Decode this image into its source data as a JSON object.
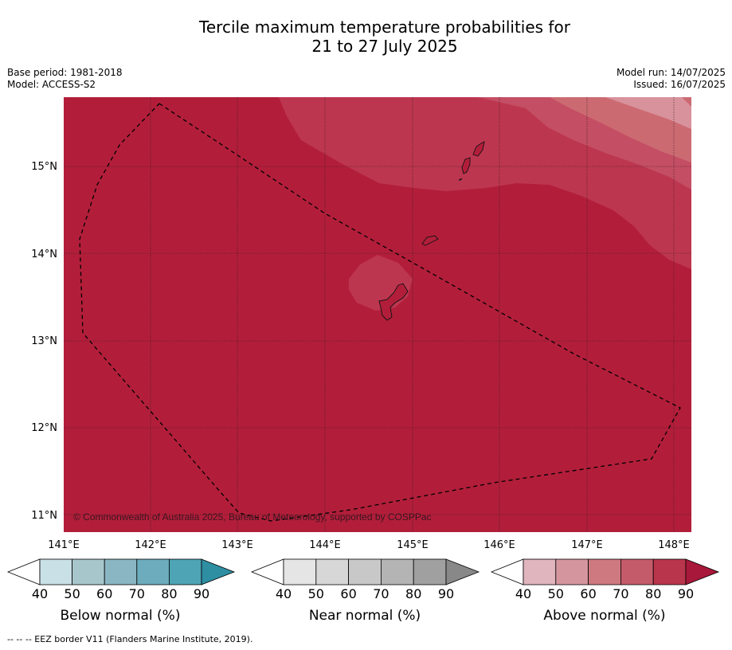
{
  "title_line1": "Tercile maximum temperature probabilities for",
  "title_line2": "21 to 27 July 2025",
  "meta": {
    "base_period": "Base period: 1981-2018",
    "model": "Model: ACCESS-S2",
    "model_run": "Model run: 14/07/2025",
    "issued": "Issued: 16/07/2025"
  },
  "map": {
    "lat_labels": [
      "15°N",
      "14°N",
      "13°N",
      "12°N",
      "11°N"
    ],
    "lon_labels": [
      "141°E",
      "142°E",
      "143°E",
      "144°E",
      "145°E",
      "146°E",
      "147°E",
      "148°E"
    ],
    "copyright": "© Commonwealth of Australia 2025, Bureau of Meteorology, supported by COSPPac",
    "fill_color": "#b21e3a"
  },
  "colorbars": [
    {
      "label": "Below normal (%)",
      "ticks": [
        "40",
        "50",
        "60",
        "70",
        "80",
        "90"
      ],
      "colors": [
        "#ffffff",
        "#c8e0e6",
        "#a7c6cc",
        "#89b6c2",
        "#6cacbc",
        "#4ea4b4",
        "#2e8ea2"
      ]
    },
    {
      "label": "Near normal (%)",
      "ticks": [
        "40",
        "50",
        "60",
        "70",
        "80",
        "90"
      ],
      "colors": [
        "#ffffff",
        "#e5e5e5",
        "#d7d7d7",
        "#c8c8c8",
        "#b4b4b4",
        "#a0a0a0",
        "#888888"
      ]
    },
    {
      "label": "Above normal (%)",
      "ticks": [
        "40",
        "50",
        "60",
        "70",
        "80",
        "90"
      ],
      "colors": [
        "#ffffff",
        "#e0b5bd",
        "#d5959f",
        "#ce787f",
        "#c45b6a",
        "#b8354c",
        "#a8183a"
      ]
    }
  ],
  "footnote": "--  --  -- EEZ border V11 (Flanders Marine Institute, 2019)."
}
